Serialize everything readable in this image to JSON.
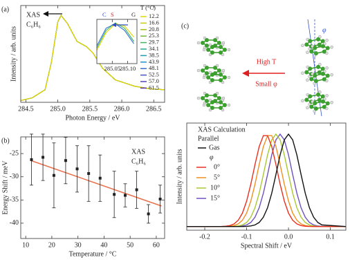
{
  "chart_data": [
    {
      "type": "line",
      "panel_label": "(a)",
      "x_label": "Photon Energy / eV",
      "y_label": "Intensity / arb. units",
      "annotations": [
        "XAS",
        "C₆H₆"
      ],
      "legend_title": "T (°C)",
      "x": [
        284.42,
        284.6,
        284.8,
        284.9,
        285.0,
        285.05,
        285.15,
        285.3,
        285.45,
        285.55,
        285.7,
        285.9,
        286.2,
        286.45,
        286.67
      ],
      "xlim": [
        284.42,
        286.67
      ],
      "ylim": [
        0,
        1.08
      ],
      "xticks": [
        284.5,
        {
          "value": 285,
          "label": "285.0"
        },
        285.5,
        {
          "value": 286,
          "label": "286.0"
        },
        286.5
      ],
      "series": [
        {
          "name": "12.2",
          "color": "#e8d400",
          "values": [
            0.02,
            0.05,
            0.14,
            0.45,
            0.9,
            0.97,
            0.88,
            0.68,
            0.62,
            0.55,
            0.38,
            0.25,
            0.18,
            0.15,
            0.14
          ]
        },
        {
          "name": "16.6",
          "color": "#c8cc00",
          "values": [
            0.02,
            0.05,
            0.14,
            0.45,
            0.9,
            0.97,
            0.88,
            0.68,
            0.62,
            0.55,
            0.38,
            0.25,
            0.18,
            0.15,
            0.14
          ]
        },
        {
          "name": "20.8",
          "color": "#a0c410",
          "values": [
            0.02,
            0.05,
            0.14,
            0.45,
            0.9,
            0.97,
            0.88,
            0.68,
            0.62,
            0.55,
            0.38,
            0.25,
            0.18,
            0.15,
            0.14
          ]
        },
        {
          "name": "25.3",
          "color": "#70bc30",
          "values": [
            0.02,
            0.05,
            0.14,
            0.45,
            0.9,
            0.97,
            0.88,
            0.68,
            0.62,
            0.55,
            0.38,
            0.25,
            0.18,
            0.15,
            0.14
          ]
        },
        {
          "name": "29.7",
          "color": "#40b460",
          "values": [
            0.02,
            0.05,
            0.14,
            0.45,
            0.9,
            0.97,
            0.88,
            0.68,
            0.62,
            0.55,
            0.38,
            0.25,
            0.18,
            0.15,
            0.14
          ]
        },
        {
          "name": "34.1",
          "color": "#20ac90",
          "values": [
            0.02,
            0.05,
            0.14,
            0.45,
            0.9,
            0.97,
            0.88,
            0.68,
            0.62,
            0.55,
            0.38,
            0.25,
            0.18,
            0.15,
            0.14
          ]
        },
        {
          "name": "38.5",
          "color": "#10a0b0",
          "values": [
            0.02,
            0.05,
            0.14,
            0.45,
            0.9,
            0.97,
            0.88,
            0.68,
            0.62,
            0.55,
            0.38,
            0.25,
            0.18,
            0.15,
            0.14
          ]
        },
        {
          "name": "43.9",
          "color": "#2090c8",
          "values": [
            0.02,
            0.05,
            0.14,
            0.45,
            0.9,
            0.97,
            0.88,
            0.68,
            0.62,
            0.55,
            0.38,
            0.25,
            0.18,
            0.15,
            0.14
          ]
        },
        {
          "name": "48.1",
          "color": "#3070d0",
          "values": [
            0.02,
            0.05,
            0.14,
            0.45,
            0.9,
            0.97,
            0.88,
            0.68,
            0.62,
            0.55,
            0.38,
            0.25,
            0.18,
            0.15,
            0.14
          ]
        },
        {
          "name": "52.5",
          "color": "#4054c8",
          "values": [
            0.02,
            0.05,
            0.14,
            0.45,
            0.9,
            0.97,
            0.88,
            0.68,
            0.62,
            0.55,
            0.38,
            0.25,
            0.18,
            0.15,
            0.14
          ]
        },
        {
          "name": "57.0",
          "color": "#5040b8",
          "values": [
            0.02,
            0.05,
            0.14,
            0.45,
            0.9,
            0.97,
            0.88,
            0.68,
            0.62,
            0.55,
            0.38,
            0.25,
            0.18,
            0.15,
            0.14
          ]
        },
        {
          "name": "61.5",
          "color": "#6030a8",
          "values": [
            0.02,
            0.05,
            0.14,
            0.45,
            0.9,
            0.97,
            0.88,
            0.68,
            0.62,
            0.55,
            0.38,
            0.25,
            0.18,
            0.15,
            0.14
          ]
        }
      ]
    },
    {
      "type": "line",
      "annotations": [
        "C",
        "S",
        "G"
      ],
      "annotation_colors": [
        "#3050c8",
        "#e02020",
        "#222222"
      ],
      "x": [
        285.0,
        285.03,
        285.06,
        285.09,
        285.12
      ],
      "xlim": [
        285.0,
        285.13
      ],
      "ylim": [
        0,
        1
      ],
      "xticks": [
        285.05,
        {
          "value": 285.1,
          "label": "285.10"
        }
      ],
      "series": [
        {
          "color": "#e8d400",
          "values": [
            0.3,
            0.7,
            0.9,
            0.85,
            0.6
          ]
        },
        {
          "color": "#40b460",
          "values": [
            0.35,
            0.75,
            0.92,
            0.8,
            0.5
          ]
        },
        {
          "color": "#3070d0",
          "values": [
            0.4,
            0.8,
            0.9,
            0.75,
            0.45
          ]
        }
      ]
    },
    {
      "type": "scatter",
      "panel_label": "(b)",
      "x_label": "Temperature / °C",
      "y_label": "Energy Shift / meV",
      "annotations": [
        "XAS",
        "C₆H₆"
      ],
      "x": [
        12.2,
        16.6,
        20.8,
        25.3,
        29.7,
        34.1,
        38.5,
        43.9,
        48.1,
        52.5,
        57.0,
        61.5
      ],
      "values": [
        -26.3,
        -25.8,
        -29.7,
        -26.5,
        -28.3,
        -29.3,
        -30.3,
        -33.8,
        -34,
        -32.8,
        -38,
        -34.8
      ],
      "errors": [
        5.5,
        5,
        7,
        5,
        5,
        6,
        5,
        5,
        2.5,
        4,
        2,
        3
      ],
      "color": "#222222",
      "fit": {
        "x": [
          12,
          62
        ],
        "values": [
          -26.5,
          -36.3
        ],
        "color": "#e8704a"
      },
      "xlim": [
        8.1,
        63.2
      ],
      "ylim": [
        -43.3,
        -21.4
      ],
      "xticks": [
        10,
        20,
        30,
        40,
        50,
        60
      ],
      "yticks": [
        -25,
        -30,
        -35,
        -40
      ]
    },
    {
      "type": "line",
      "title": "XAS Calculation",
      "subtitle": "Parallel",
      "x_label": "Spectral Shift / eV",
      "y_label": "Intensity / arb. units",
      "legend_title": "φ",
      "x": [
        -0.243,
        -0.16,
        -0.15,
        -0.14,
        -0.13,
        -0.12,
        -0.11,
        -0.1,
        -0.09,
        -0.08,
        -0.07,
        -0.06,
        -0.05,
        -0.04,
        -0.03,
        -0.02,
        -0.01,
        0,
        0.01,
        0.02,
        0.03,
        0.04,
        0.05,
        0.06,
        0.07,
        0.08,
        0.137
      ],
      "xlim": [
        -0.243,
        0.137
      ],
      "ylim": [
        -0.04,
        1.12
      ],
      "xticks": [
        -0.2,
        -0.1,
        {
          "value": 0,
          "label": "0.0"
        },
        0.1
      ],
      "series": [
        {
          "name": "Gas",
          "color": "#111111",
          "values": [
            0,
            0,
            0,
            0,
            0,
            0,
            0,
            0.002,
            0.006,
            0.017,
            0.044,
            0.101,
            0.203,
            0.361,
            0.563,
            0.775,
            0.938,
            1,
            0.938,
            0.775,
            0.563,
            0.361,
            0.203,
            0.101,
            0.044,
            0.017,
            0
          ]
        },
        {
          "name": "0°",
          "color": "#e83020",
          "values": [
            0,
            0.001,
            0.003,
            0.01,
            0.028,
            0.068,
            0.145,
            0.275,
            0.458,
            0.671,
            0.866,
            0.984,
            0.984,
            0.866,
            0.671,
            0.458,
            0.275,
            0.145,
            0.068,
            0.028,
            0.01,
            0.003,
            0.001,
            0,
            0,
            0,
            0
          ]
        },
        {
          "name": "5°",
          "color": "#f09020",
          "values": [
            0,
            0,
            0.001,
            0.003,
            0.01,
            0.028,
            0.068,
            0.145,
            0.275,
            0.458,
            0.671,
            0.866,
            0.984,
            0.984,
            0.866,
            0.671,
            0.458,
            0.275,
            0.145,
            0.068,
            0.028,
            0.01,
            0.003,
            0.001,
            0,
            0,
            0
          ]
        },
        {
          "name": "10°",
          "color": "#a8c830",
          "values": [
            0,
            0,
            0,
            0,
            0.002,
            0.006,
            0.017,
            0.044,
            0.101,
            0.203,
            0.361,
            0.563,
            0.775,
            0.938,
            1,
            0.938,
            0.775,
            0.563,
            0.361,
            0.203,
            0.101,
            0.044,
            0.017,
            0.006,
            0.002,
            0,
            0
          ]
        },
        {
          "name": "15°",
          "color": "#7050c0",
          "values": [
            0,
            0,
            0,
            0,
            0,
            0.002,
            0.006,
            0.017,
            0.044,
            0.101,
            0.203,
            0.361,
            0.563,
            0.775,
            0.938,
            1,
            0.938,
            0.775,
            0.563,
            0.361,
            0.203,
            0.101,
            0.044,
            0.017,
            0.006,
            0.002,
            0
          ]
        }
      ]
    }
  ],
  "diagram": {
    "panel_label": "(c)",
    "arrow_top": "High T",
    "arrow_bottom": "Small φ",
    "angle": "φ"
  }
}
